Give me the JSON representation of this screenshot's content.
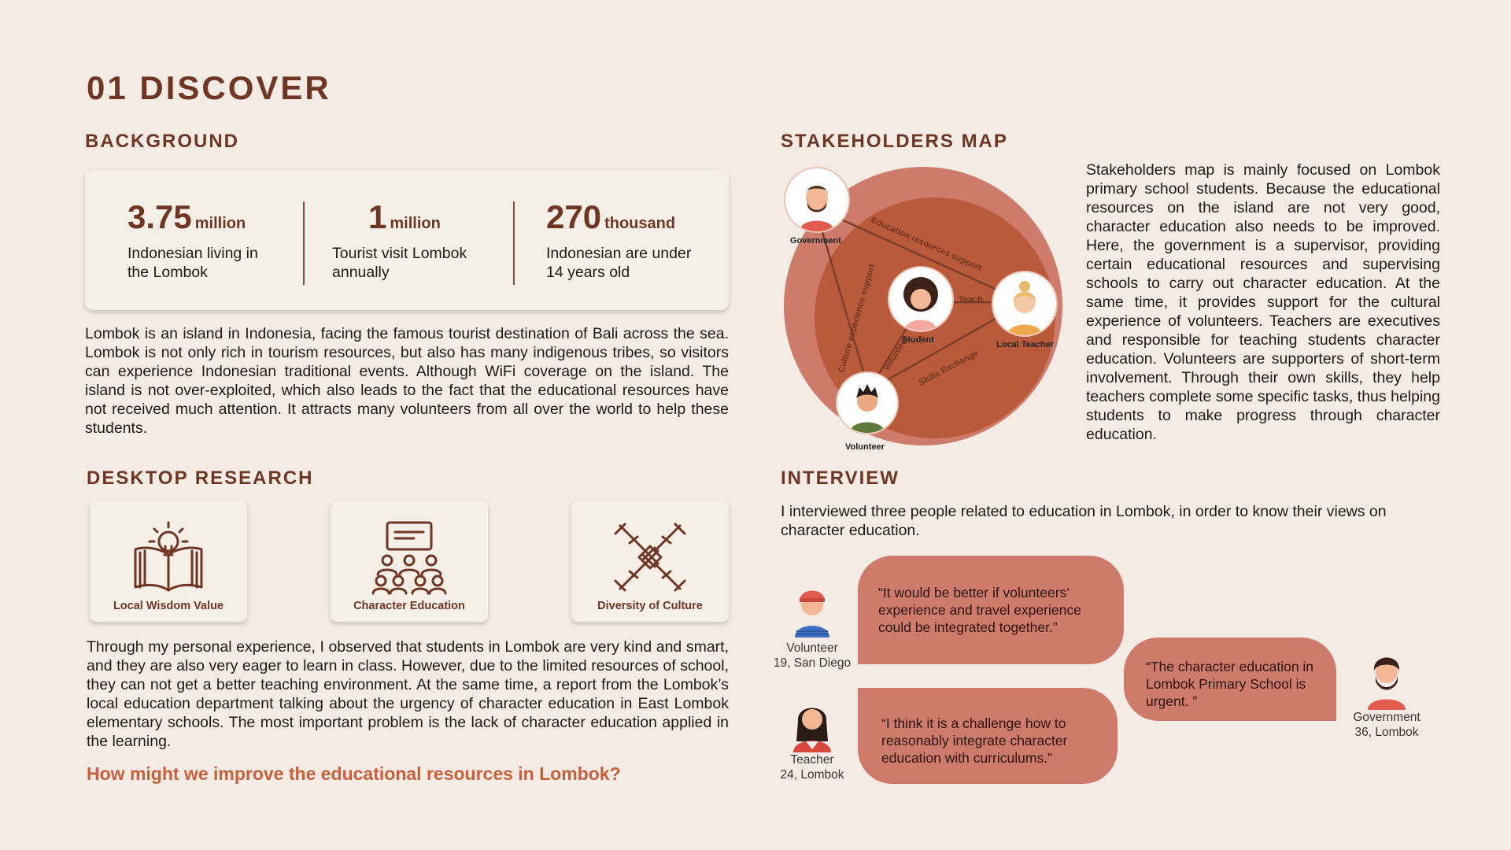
{
  "page": {
    "title": "01 DISCOVER"
  },
  "background": {
    "heading": "BACKGROUND",
    "stats": [
      {
        "number": "3.75",
        "unit": "million",
        "desc": "Indonesian living in the Lombok"
      },
      {
        "number": "1",
        "unit": "million",
        "desc": "Tourist visit Lombok annually"
      },
      {
        "number": "270",
        "unit": "thousand",
        "desc": "Indonesian are under 14 years old"
      }
    ],
    "paragraph": "Lombok is an island in Indonesia, facing the famous tourist destination of Bali across the sea. Lombok is not only rich in tourism resources, but also has many indigenous tribes, so visitors can experience Indonesian traditional events. Although WiFi coverage on the island. The island is not over-exploited, which also leads to the fact that the educational resources have not received much attention. It attracts many volunteers from all over the world to help these students."
  },
  "desktop_research": {
    "heading": "DESKTOP RESEARCH",
    "cards": [
      {
        "label": "Local Wisdom Value",
        "icon": "book-lightbulb-icon"
      },
      {
        "label": "Character Education",
        "icon": "classroom-icon"
      },
      {
        "label": "Diversity of Culture",
        "icon": "joined-hands-icon"
      }
    ],
    "paragraph": "Through my personal experience, I observed that students in Lombok are very kind and smart, and they are also very eager to learn in class. However, due to the limited resources of school, they can not get a better teaching environment. At the same time, a report from the Lombok’s local education department talking about the urgency of character education in East Lombok elementary schools. The most important problem is the lack of character education applied in the learning.",
    "question": "How might we improve the educational resources in Lombok?"
  },
  "stakeholders": {
    "heading": "STAKEHOLDERS MAP",
    "nodes": {
      "government": "Government",
      "student": "Student",
      "teacher": "Local Teacher",
      "volunteer": "Volunteer"
    },
    "edges": {
      "gov_teacher": "Education resources support",
      "gov_volunteer": "Culture experience support",
      "student_teacher": "Teach",
      "volunteer_student": "Volunteer",
      "volunteer_teacher": "Skills Exchange"
    },
    "colors": {
      "outer": "#cf7b6c",
      "inner": "#b95a3a",
      "line": "#7a3f2c"
    },
    "description": "Stakeholders map is mainly focused on Lombok primary school students. Because the educational resources on the island are not very good, character education also needs to be improved. Here, the government is a supervisor, providing certain educational resources and supervising schools to carry out character education. At the same time, it provides support for the cultural experience of volunteers. Teachers are executives and responsible for teaching students character education. Volunteers are supporters of short-term involvement. Through their own skills, they help teachers complete some specific tasks, thus helping students to make progress through character education."
  },
  "interview": {
    "heading": "INTERVIEW",
    "intro": "I interviewed three people related to education in Lombok, in order to know their views on character education.",
    "people": [
      {
        "role": "Volunteer",
        "detail": "19, San Diego",
        "quote": "“It would be better if volunteers’ experience and travel experience could be integrated together.”"
      },
      {
        "role": "Teacher",
        "detail": "24, Lombok",
        "quote": "“I think it is a challenge how to reasonably integrate character education with curriculums.”"
      },
      {
        "role": "Government",
        "detail": "36, Lombok",
        "quote": "“The character education in Lombok Primary School is urgent. ”"
      }
    ]
  }
}
